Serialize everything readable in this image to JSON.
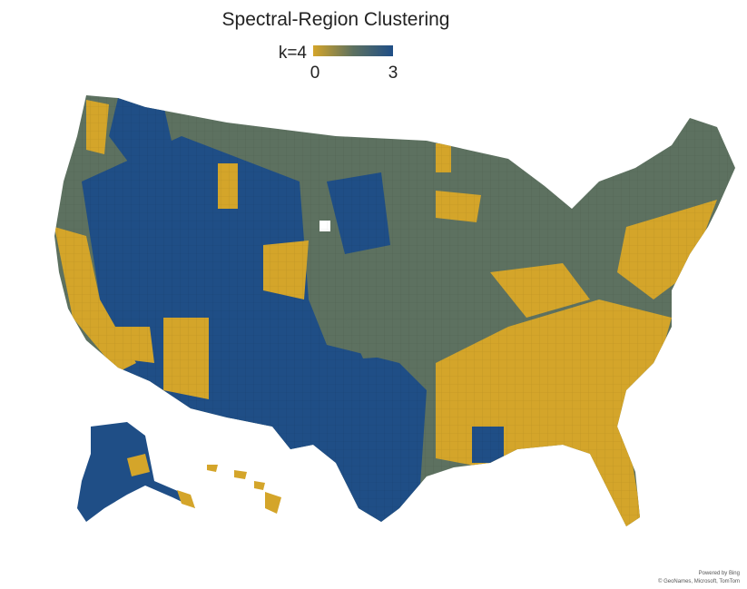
{
  "title": "Spectral-Region Clustering",
  "legend": {
    "label": "k=4",
    "min": 0,
    "max": 3,
    "colors": [
      "#d4a52a",
      "#5d7160",
      "#1f4e86"
    ]
  },
  "attribution": [
    "Powered by Bing",
    "© GeoNames, Microsoft, TomTom"
  ]
}
